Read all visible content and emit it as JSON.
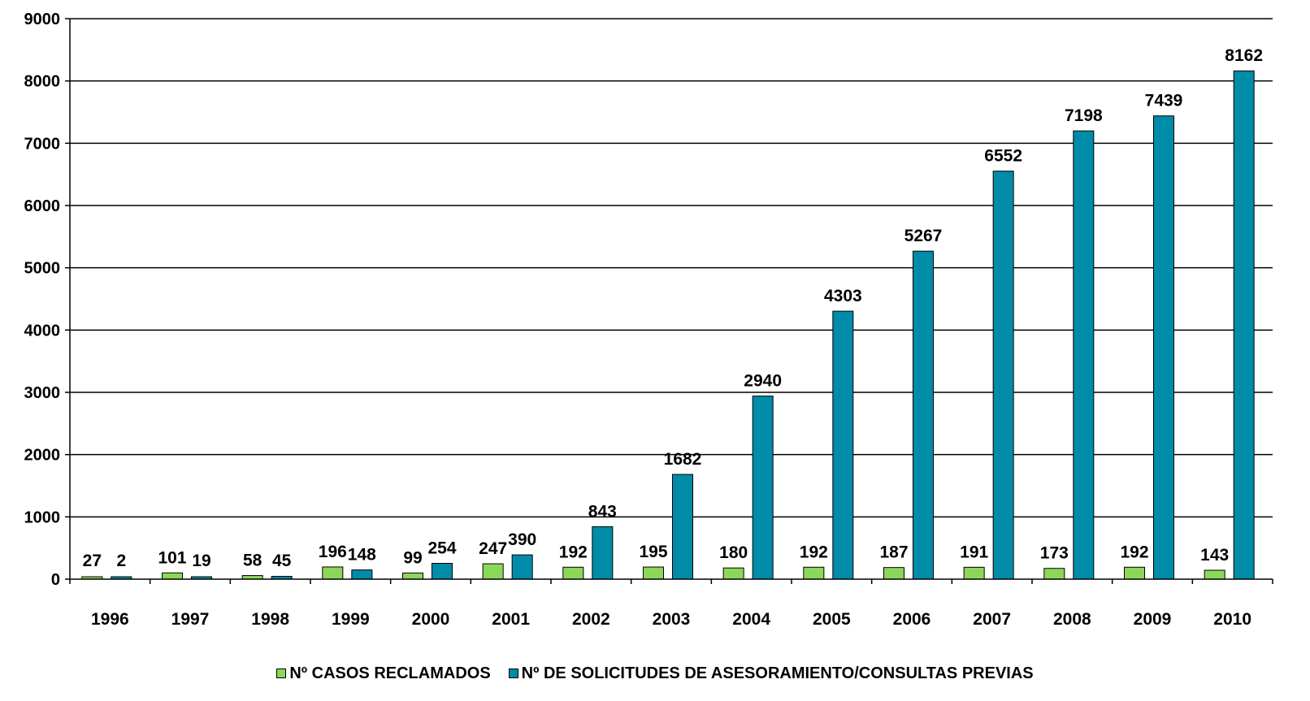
{
  "chart_data": {
    "type": "bar",
    "categories": [
      "1996",
      "1997",
      "1998",
      "1999",
      "2000",
      "2001",
      "2002",
      "2003",
      "2004",
      "2005",
      "2006",
      "2007",
      "2008",
      "2009",
      "2010"
    ],
    "series": [
      {
        "name": "Nº CASOS  RECLAMADOS",
        "color": "#8cd75a",
        "values": [
          27,
          101,
          58,
          196,
          99,
          247,
          192,
          195,
          180,
          192,
          187,
          191,
          173,
          192,
          143
        ]
      },
      {
        "name": "Nº DE SOLICITUDES  DE ASESORAMIENTO/CONSULTAS  PREVIAS",
        "color": "#008ba8",
        "values": [
          2,
          19,
          45,
          148,
          254,
          390,
          843,
          1682,
          2940,
          4303,
          5267,
          6552,
          7198,
          7439,
          8162
        ]
      }
    ],
    "yticks": [
      0,
      1000,
      2000,
      3000,
      4000,
      5000,
      6000,
      7000,
      8000,
      9000
    ],
    "ylim": [
      0,
      9000
    ],
    "grid": true,
    "legend": "bottom-center",
    "title": "",
    "xlabel": "",
    "ylabel": ""
  }
}
